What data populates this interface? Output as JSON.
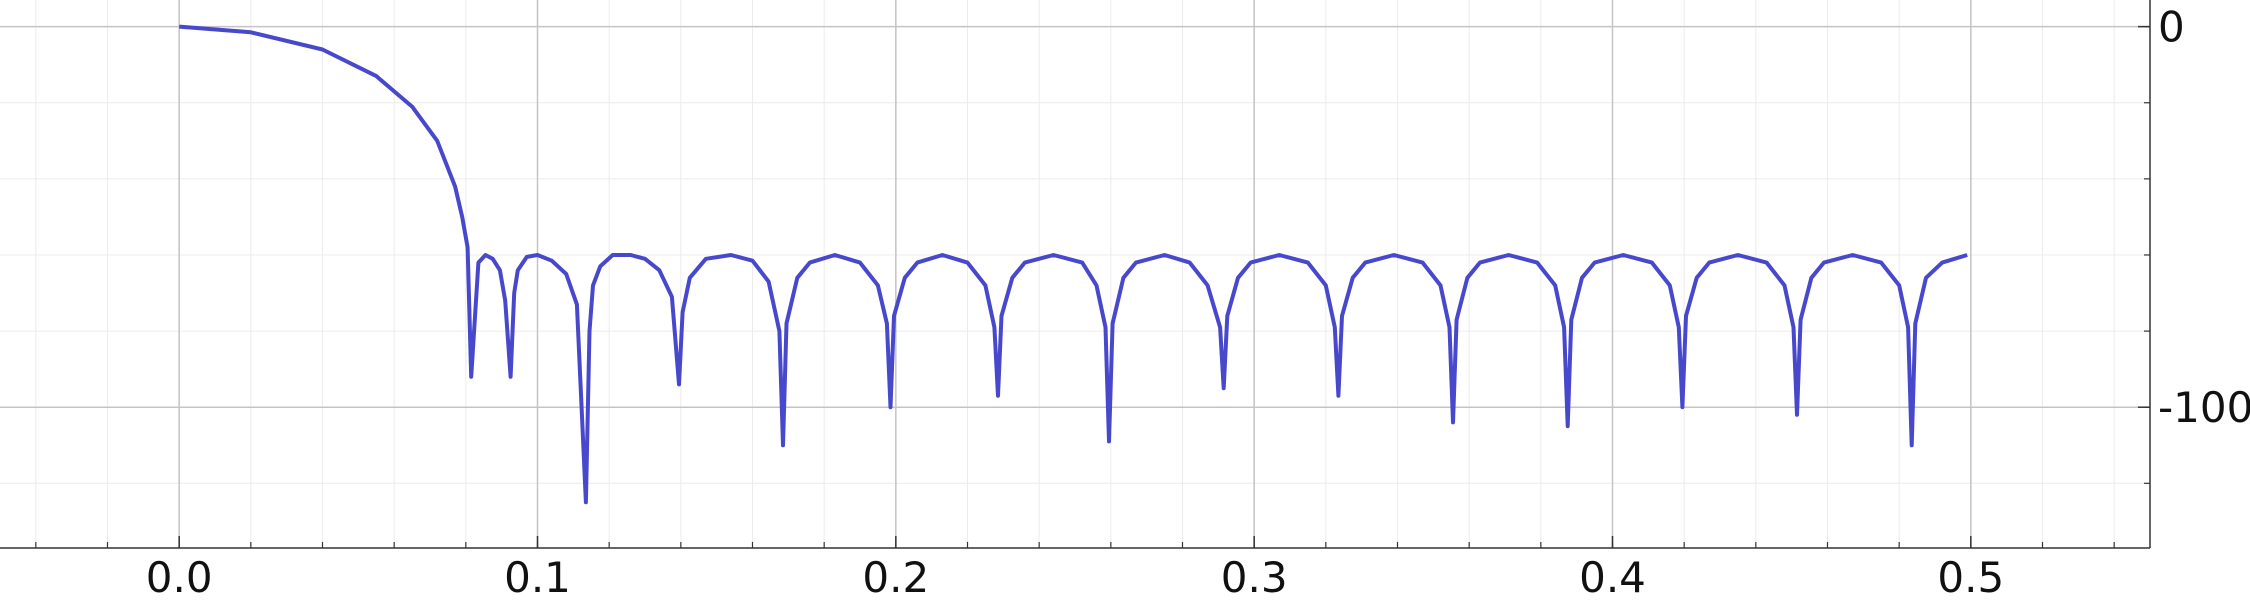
{
  "chart_data": {
    "type": "line",
    "title": "",
    "xlabel": "",
    "ylabel": "",
    "xlim": [
      -0.05,
      0.55
    ],
    "ylim": [
      -137,
      7
    ],
    "grid": true,
    "x_ticks": [
      {
        "value": 0.0,
        "label": "0.0"
      },
      {
        "value": 0.1,
        "label": "0.1"
      },
      {
        "value": 0.2,
        "label": "0.2"
      },
      {
        "value": 0.3,
        "label": "0.3"
      },
      {
        "value": 0.4,
        "label": "0.4"
      },
      {
        "value": 0.5,
        "label": "0.5"
      }
    ],
    "y_ticks": [
      {
        "value": 0,
        "label": "0"
      },
      {
        "value": -100,
        "label": "-100"
      }
    ],
    "y_axis_side": "right",
    "series": [
      {
        "color": "#4848cc",
        "x": [
          0.0,
          0.02,
          0.04,
          0.055,
          0.065,
          0.072,
          0.077,
          0.079,
          0.0805,
          0.0815,
          0.0835,
          0.0855,
          0.0875,
          0.0895,
          0.091,
          0.0925,
          0.0935,
          0.0945,
          0.097,
          0.1,
          0.104,
          0.108,
          0.111,
          0.1135,
          0.1145,
          0.1155,
          0.1175,
          0.121,
          0.126,
          0.13,
          0.134,
          0.1375,
          0.1395,
          0.1405,
          0.1425,
          0.147,
          0.154,
          0.16,
          0.1645,
          0.1675,
          0.1685,
          0.1695,
          0.1725,
          0.176,
          0.183,
          0.19,
          0.195,
          0.1975,
          0.1985,
          0.1995,
          0.2025,
          0.206,
          0.213,
          0.22,
          0.225,
          0.2275,
          0.2285,
          0.2295,
          0.2325,
          0.236,
          0.244,
          0.252,
          0.256,
          0.2585,
          0.2595,
          0.2605,
          0.2635,
          0.267,
          0.275,
          0.282,
          0.287,
          0.2905,
          0.2915,
          0.2925,
          0.2955,
          0.299,
          0.307,
          0.315,
          0.32,
          0.3225,
          0.3235,
          0.3245,
          0.3275,
          0.331,
          0.339,
          0.347,
          0.352,
          0.3545,
          0.3555,
          0.3565,
          0.3595,
          0.363,
          0.371,
          0.379,
          0.384,
          0.3865,
          0.3875,
          0.3885,
          0.3915,
          0.395,
          0.403,
          0.411,
          0.416,
          0.4185,
          0.4195,
          0.4205,
          0.4235,
          0.427,
          0.435,
          0.443,
          0.448,
          0.4505,
          0.4515,
          0.4525,
          0.4555,
          0.459,
          0.467,
          0.475,
          0.48,
          0.4825,
          0.4835,
          0.4845,
          0.4875,
          0.492,
          0.499
        ],
        "y": [
          0,
          -1.5,
          -6,
          -13,
          -21,
          -30,
          -42,
          -50,
          -58,
          -92,
          -62,
          -60,
          -61,
          -64,
          -72,
          -92,
          -70,
          -64,
          -60.5,
          -60,
          -61.5,
          -65,
          -73,
          -125,
          -80,
          -68,
          -63,
          -60,
          -60,
          -61,
          -64,
          -71,
          -94,
          -75,
          -66,
          -61,
          -60,
          -61.5,
          -67,
          -80,
          -110,
          -78,
          -66,
          -62,
          -60,
          -62,
          -68,
          -78,
          -100,
          -76,
          -66,
          -62,
          -60,
          -62,
          -68,
          -79,
          -97,
          -76,
          -66,
          -62,
          -60,
          -62,
          -68,
          -79,
          -109,
          -78,
          -66,
          -62,
          -60,
          -62,
          -68,
          -79,
          -95,
          -76,
          -66,
          -62,
          -60,
          -62,
          -68,
          -79,
          -97,
          -76,
          -66,
          -62,
          -60,
          -62,
          -68,
          -79,
          -104,
          -77,
          -66,
          -62,
          -60,
          -62,
          -68,
          -79,
          -105,
          -77,
          -66,
          -62,
          -60,
          -62,
          -68,
          -79,
          -100,
          -76,
          -66,
          -62,
          -60,
          -62,
          -68,
          -79,
          -102,
          -77,
          -66,
          -62,
          -60,
          -62,
          -68,
          -79,
          -110,
          -78,
          -66,
          -62,
          -60
        ]
      }
    ]
  }
}
